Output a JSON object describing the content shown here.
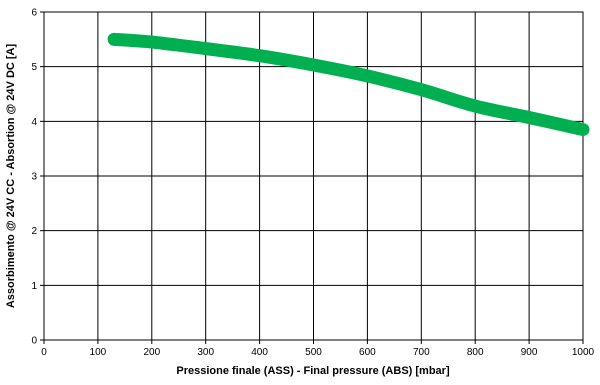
{
  "chart_data": {
    "type": "line",
    "title": "",
    "xlabel": "Pressione finale (ASS) - Final pressure (ABS) [mbar]",
    "ylabel": "Assorbimento @ 24V CC - Absortion @ 24V DC [A]",
    "xlim": [
      0,
      1000
    ],
    "ylim": [
      0,
      6
    ],
    "x_ticks": [
      0,
      100,
      200,
      300,
      400,
      500,
      600,
      700,
      800,
      900,
      1000
    ],
    "y_ticks": [
      0,
      1,
      2,
      3,
      4,
      5,
      6
    ],
    "grid": true,
    "legend": "none",
    "series": [
      {
        "color": "#00b050",
        "x": [
          130,
          200,
          300,
          400,
          500,
          600,
          700,
          800,
          900,
          1000
        ],
        "y": [
          5.5,
          5.45,
          5.33,
          5.2,
          5.03,
          4.83,
          4.58,
          4.28,
          4.07,
          3.85
        ]
      }
    ]
  }
}
